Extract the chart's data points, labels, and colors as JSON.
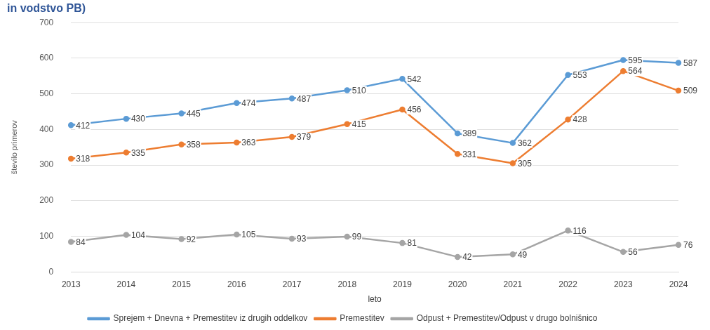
{
  "chart_data": {
    "type": "line",
    "title": "in vodstvo PB)",
    "xlabel": "leto",
    "ylabel": "število primerov",
    "categories": [
      "2013",
      "2014",
      "2015",
      "2016",
      "2017",
      "2018",
      "2019",
      "2020",
      "2021",
      "2022",
      "2023",
      "2024"
    ],
    "series": [
      {
        "name": "Sprejem + Dnevna + Premestitev iz drugih oddelkov",
        "color": "#5b9bd5",
        "values": [
          412,
          430,
          445,
          474,
          487,
          510,
          542,
          389,
          362,
          553,
          595,
          587
        ]
      },
      {
        "name": "Premestitev",
        "color": "#ed7d31",
        "values": [
          318,
          335,
          358,
          363,
          379,
          415,
          456,
          331,
          305,
          428,
          564,
          509
        ]
      },
      {
        "name": "Odpust + Premestitev/Odpust v drugo bolnišnico",
        "color": "#a5a5a5",
        "values": [
          84,
          104,
          92,
          105,
          93,
          99,
          81,
          42,
          49,
          116,
          56,
          76
        ]
      }
    ],
    "ylim": [
      0,
      700
    ],
    "yticks": [
      0,
      100,
      200,
      300,
      400,
      500,
      600,
      700
    ],
    "grid": "y",
    "legend": "bottom",
    "marker": "circle",
    "line_style": "solid",
    "data_labels": true
  }
}
